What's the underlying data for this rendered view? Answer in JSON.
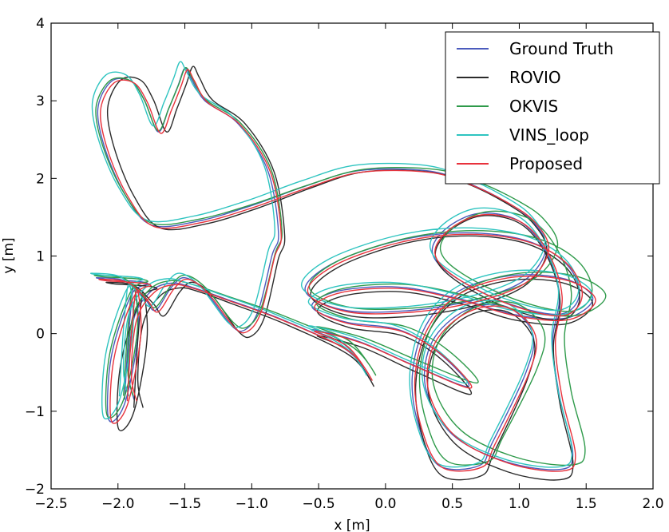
{
  "chart_data": {
    "type": "line",
    "title": "",
    "xlabel": "x [m]",
    "ylabel": "y [m]",
    "xlim": [
      -2.5,
      2.0
    ],
    "ylim": [
      -2,
      4
    ],
    "x_ticks": [
      -2.5,
      -2.0,
      -1.5,
      -1.0,
      -0.5,
      0.0,
      0.5,
      1.0,
      1.5,
      2.0
    ],
    "x_tick_labels": [
      "−2.5",
      "−2.0",
      "−1.5",
      "−1.0",
      "−0.5",
      "0.0",
      "0.5",
      "1.0",
      "1.5",
      "2.0"
    ],
    "y_ticks": [
      -2,
      -1,
      0,
      1,
      2,
      3,
      4
    ],
    "y_tick_labels": [
      "−2",
      "−1",
      "0",
      "1",
      "2",
      "3",
      "4"
    ],
    "grid": false,
    "legend_position": "top-right",
    "series": [
      {
        "name": "Ground Truth",
        "color": "#4b5bbd",
        "offset": [
          0.0,
          0.0
        ],
        "scale": [
          1.0,
          1.0
        ]
      },
      {
        "name": "ROVIO",
        "color": "#2b2b2b",
        "offset": [
          0.03,
          -0.08
        ],
        "scale": [
          0.98,
          1.03
        ]
      },
      {
        "name": "OKVIS",
        "color": "#2e9a4a",
        "offset": [
          0.05,
          0.04
        ],
        "scale": [
          1.03,
          0.99
        ]
      },
      {
        "name": "VINS_loop",
        "color": "#2ec4c0",
        "offset": [
          -0.02,
          0.05
        ],
        "scale": [
          1.01,
          1.01
        ]
      },
      {
        "name": "Proposed",
        "color": "#e8323c",
        "offset": [
          0.02,
          -0.02
        ],
        "scale": [
          1.0,
          1.0
        ]
      }
    ],
    "base_path": [
      [
        -1.95,
        -0.85
      ],
      [
        -1.92,
        0.0
      ],
      [
        -1.88,
        0.6
      ],
      [
        -1.85,
        0.0
      ],
      [
        -1.95,
        -0.9
      ],
      [
        -2.07,
        -1.1
      ],
      [
        -2.05,
        -0.3
      ],
      [
        -1.9,
        0.5
      ],
      [
        -1.78,
        0.65
      ],
      [
        -2.1,
        0.7
      ],
      [
        -2.15,
        0.72
      ],
      [
        -1.95,
        0.68
      ],
      [
        -1.8,
        0.45
      ],
      [
        -1.72,
        0.3
      ],
      [
        -1.6,
        0.6
      ],
      [
        -1.5,
        0.72
      ],
      [
        -1.35,
        0.55
      ],
      [
        -1.15,
        0.1
      ],
      [
        -1.05,
        0.05
      ],
      [
        -0.95,
        0.3
      ],
      [
        -0.85,
        1.0
      ],
      [
        -0.8,
        1.3
      ],
      [
        -0.88,
        2.1
      ],
      [
        -1.1,
        2.7
      ],
      [
        -1.35,
        3.0
      ],
      [
        -1.45,
        3.28
      ],
      [
        -1.5,
        3.42
      ],
      [
        -1.55,
        3.2
      ],
      [
        -1.62,
        2.9
      ],
      [
        -1.7,
        2.6
      ],
      [
        -1.8,
        3.0
      ],
      [
        -1.9,
        3.25
      ],
      [
        -2.05,
        3.25
      ],
      [
        -2.15,
        2.9
      ],
      [
        -2.1,
        2.4
      ],
      [
        -1.95,
        1.8
      ],
      [
        -1.75,
        1.4
      ],
      [
        -1.4,
        1.45
      ],
      [
        -1.0,
        1.65
      ],
      [
        -0.6,
        1.9
      ],
      [
        -0.2,
        2.1
      ],
      [
        0.3,
        2.1
      ],
      [
        0.6,
        1.95
      ],
      [
        0.9,
        1.7
      ],
      [
        1.1,
        1.45
      ],
      [
        1.2,
        1.1
      ],
      [
        1.05,
        0.7
      ],
      [
        0.7,
        0.45
      ],
      [
        0.2,
        0.3
      ],
      [
        -0.3,
        0.3
      ],
      [
        -0.6,
        0.55
      ],
      [
        -0.4,
        0.9
      ],
      [
        0.1,
        1.2
      ],
      [
        0.6,
        1.3
      ],
      [
        1.05,
        1.2
      ],
      [
        1.35,
        0.9
      ],
      [
        1.45,
        0.5
      ],
      [
        1.3,
        0.25
      ],
      [
        0.9,
        0.4
      ],
      [
        0.5,
        0.75
      ],
      [
        0.35,
        1.05
      ],
      [
        0.45,
        1.35
      ],
      [
        0.7,
        1.55
      ],
      [
        1.0,
        1.45
      ],
      [
        1.2,
        1.05
      ],
      [
        1.3,
        0.5
      ],
      [
        1.25,
        -0.1
      ],
      [
        1.3,
        -0.8
      ],
      [
        1.4,
        -1.55
      ],
      [
        1.3,
        -1.75
      ],
      [
        0.9,
        -1.65
      ],
      [
        0.5,
        -1.3
      ],
      [
        0.3,
        -0.7
      ],
      [
        0.35,
        -0.1
      ],
      [
        0.6,
        0.3
      ],
      [
        0.9,
        0.35
      ],
      [
        1.1,
        0.0
      ],
      [
        1.05,
        -0.5
      ],
      [
        0.8,
        -1.4
      ],
      [
        0.7,
        -1.7
      ],
      [
        0.4,
        -1.7
      ],
      [
        0.25,
        -1.2
      ],
      [
        0.2,
        -0.55
      ],
      [
        0.3,
        0.1
      ],
      [
        0.55,
        0.55
      ],
      [
        0.95,
        0.75
      ],
      [
        1.35,
        0.7
      ],
      [
        1.55,
        0.45
      ],
      [
        1.35,
        0.2
      ],
      [
        0.95,
        0.25
      ],
      [
        0.55,
        0.45
      ],
      [
        0.1,
        0.6
      ],
      [
        -0.35,
        0.55
      ],
      [
        -0.55,
        0.35
      ],
      [
        -0.3,
        0.15
      ],
      [
        0.1,
        0.05
      ],
      [
        0.4,
        -0.25
      ],
      [
        0.62,
        -0.68
      ],
      [
        0.2,
        -0.4
      ],
      [
        -0.2,
        -0.1
      ],
      [
        -0.55,
        0.05
      ],
      [
        -0.3,
        -0.15
      ],
      [
        -0.12,
        -0.58
      ],
      [
        -0.3,
        -0.2
      ],
      [
        -0.8,
        0.2
      ],
      [
        -1.2,
        0.45
      ],
      [
        -1.45,
        0.6
      ],
      [
        -1.6,
        0.65
      ],
      [
        -1.75,
        0.55
      ],
      [
        -1.88,
        0.2
      ],
      [
        -1.92,
        -0.5
      ],
      [
        -1.88,
        -0.85
      ]
    ]
  }
}
